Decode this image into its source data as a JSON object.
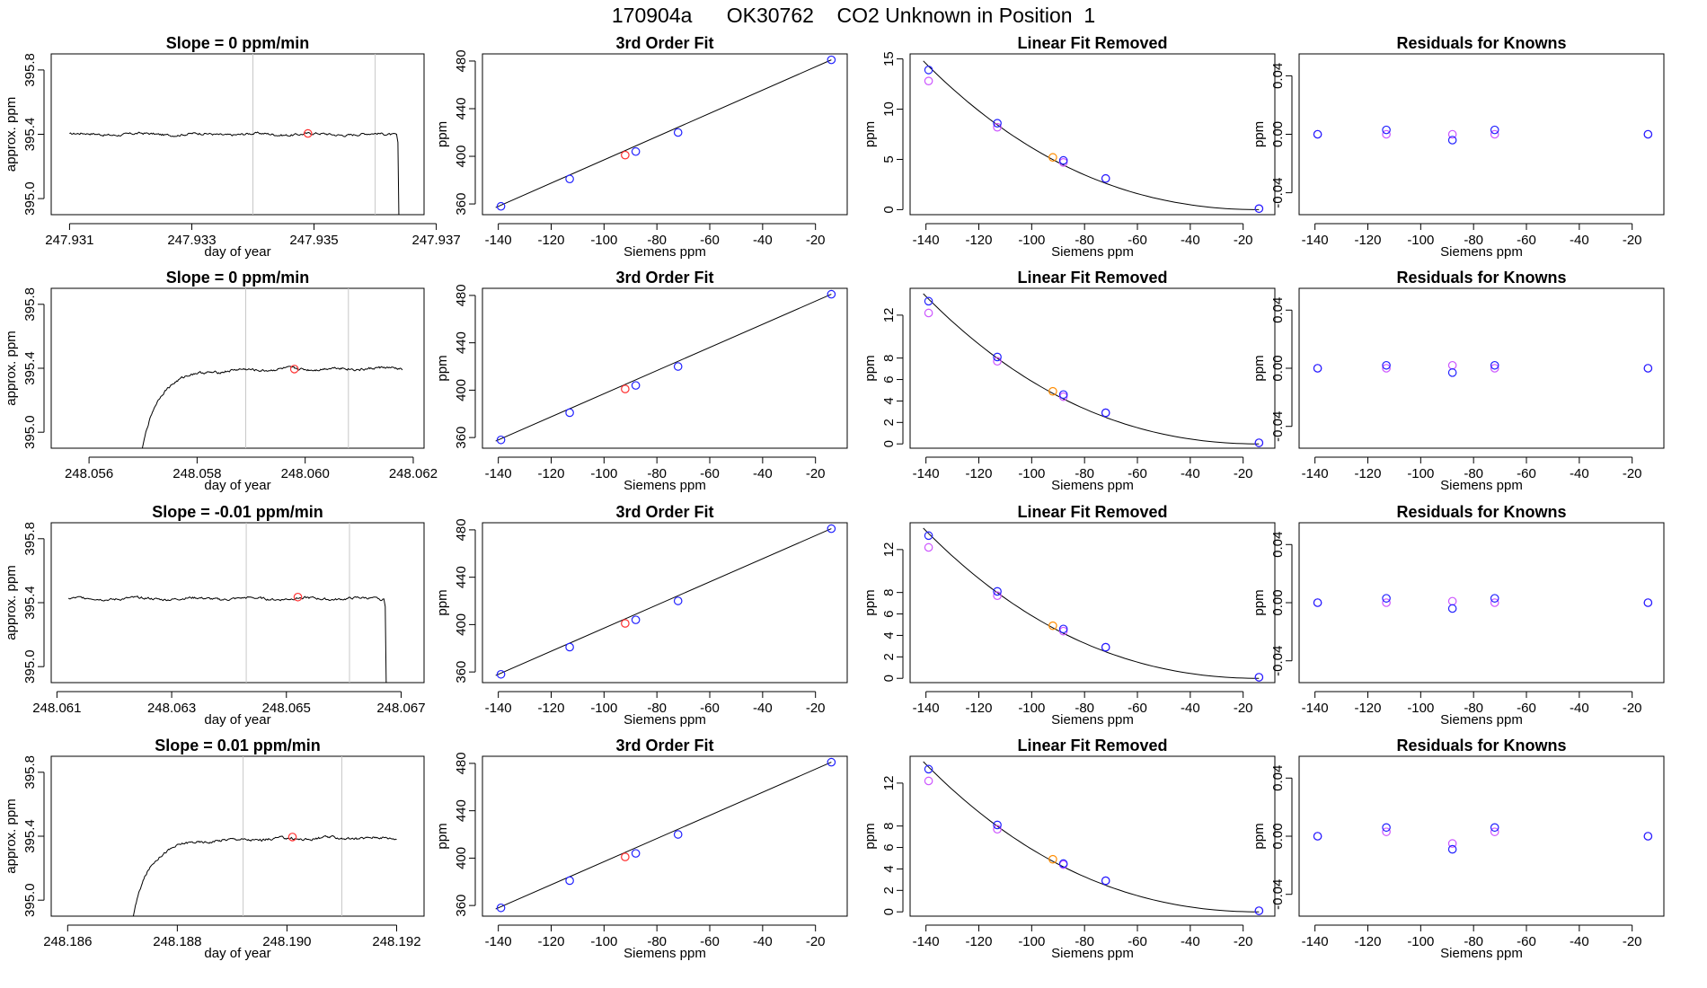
{
  "title": "170904a      OK30762    CO2 Unknown in Position  1",
  "colors": {
    "line": "#000000",
    "grid": "#c8c8c8",
    "known": "#2020ff",
    "unknown": "#ff3030",
    "orange": "#ff8c00",
    "magenta": "#cc55ff"
  },
  "chart_data": [
    {
      "type": "line",
      "panel": "timeseries",
      "row": 0,
      "title": "Slope =  0  ppm/min",
      "xlabel": "day of year",
      "ylabel": "approx. ppm",
      "xlim": [
        247.9307,
        247.9368
      ],
      "ylim": [
        394.9,
        395.9
      ],
      "xticks": [
        247.931,
        247.933,
        247.935,
        247.937
      ],
      "xtick_labels": [
        "247.931",
        "247.933",
        "247.935",
        "247.937"
      ],
      "yticks": [
        395.0,
        395.4,
        395.8
      ],
      "ytick_labels": [
        "395.0",
        "395.4",
        "395.8"
      ],
      "vlines": [
        247.934,
        247.936
      ],
      "highlight": {
        "x": 247.9349,
        "y": 395.405
      },
      "series_shape": "flat",
      "y_level": 395.4,
      "x_start": 247.931,
      "x_end": 247.93635
    },
    {
      "type": "scatter",
      "panel": "fit",
      "row": 0,
      "title": "3rd Order Fit",
      "xlabel": "Siemens ppm",
      "ylabel": "ppm",
      "xlim": [
        -146,
        -8
      ],
      "ylim": [
        351,
        486
      ],
      "xticks": [
        -140,
        -120,
        -100,
        -80,
        -60,
        -40,
        -20
      ],
      "xtick_labels": [
        "-140",
        "-120",
        "-100",
        "-80",
        "-60",
        "-40",
        "-20"
      ],
      "yticks": [
        360,
        400,
        440,
        480
      ],
      "ytick_labels": [
        "360",
        "400",
        "440",
        "480"
      ],
      "line": {
        "x": [
          -141,
          -14
        ],
        "y": [
          357,
          481
        ]
      },
      "known_points": {
        "x": [
          -139,
          -113,
          -88,
          -72,
          -14
        ],
        "y": [
          358,
          381,
          404,
          420,
          481
        ]
      },
      "unknown_points": {
        "x": [
          -92
        ],
        "y": [
          401
        ]
      }
    },
    {
      "type": "scatter",
      "panel": "linear_removed",
      "row": 0,
      "title": "Linear Fit Removed",
      "xlabel": "Siemens ppm",
      "ylabel": "ppm",
      "xlim": [
        -146,
        -8
      ],
      "ylim": [
        -0.5,
        15.5
      ],
      "xticks": [
        -140,
        -120,
        -100,
        -80,
        -60,
        -40,
        -20
      ],
      "xtick_labels": [
        "-140",
        "-120",
        "-100",
        "-80",
        "-60",
        "-40",
        "-20"
      ],
      "yticks": [
        0,
        5,
        10,
        15
      ],
      "ytick_labels": [
        "0",
        "5",
        "10",
        "15"
      ],
      "curve": {
        "x0": -141,
        "x1": -14,
        "y0": 14.8
      },
      "blue_points": {
        "x": [
          -139,
          -113,
          -88,
          -72,
          -14
        ],
        "y": [
          13.9,
          8.6,
          4.9,
          3.1,
          0.1
        ]
      },
      "magenta_points": {
        "x": [
          -139,
          -113,
          -88,
          -72,
          -14
        ],
        "y": [
          12.8,
          8.2,
          4.7,
          3.1,
          0.1
        ]
      },
      "orange_points": {
        "x": [
          -92
        ],
        "y": [
          5.2
        ]
      }
    },
    {
      "type": "scatter",
      "panel": "residuals",
      "row": 0,
      "title": "Residuals for Knowns",
      "xlabel": "Siemens ppm",
      "ylabel": "ppm",
      "xlim": [
        -146,
        -8
      ],
      "ylim": [
        -0.055,
        0.055
      ],
      "xticks": [
        -140,
        -120,
        -100,
        -80,
        -60,
        -40,
        -20
      ],
      "xtick_labels": [
        "-140",
        "-120",
        "-100",
        "-80",
        "-60",
        "-40",
        "-20"
      ],
      "yticks": [
        -0.04,
        0.0,
        0.04
      ],
      "ytick_labels": [
        "-0.04",
        "0.00",
        "0.04"
      ],
      "blue_points": {
        "x": [
          -139,
          -113,
          -88,
          -72,
          -14
        ],
        "y": [
          0.0,
          0.003,
          -0.004,
          0.003,
          0.0
        ]
      },
      "magenta_points": {
        "x": [
          -139,
          -113,
          -88,
          -72,
          -14
        ],
        "y": [
          0.0,
          0.0,
          0.0,
          0.0,
          0.0
        ]
      }
    },
    {
      "type": "line",
      "panel": "timeseries",
      "row": 1,
      "title": "Slope =  0  ppm/min",
      "xlabel": "day of year",
      "ylabel": "approx. ppm",
      "xlim": [
        248.0553,
        248.0622
      ],
      "ylim": [
        394.9,
        395.9
      ],
      "xticks": [
        248.056,
        248.058,
        248.06,
        248.062
      ],
      "xtick_labels": [
        "248.056",
        "248.058",
        "248.060",
        "248.062"
      ],
      "yticks": [
        395.0,
        395.4,
        395.8
      ],
      "ytick_labels": [
        "395.0",
        "395.4",
        "395.8"
      ],
      "vlines": [
        248.0589,
        248.0608
      ],
      "highlight": {
        "x": 248.0598,
        "y": 395.395
      },
      "series_shape": "rise",
      "y_level": 395.4,
      "x_start": 248.05685,
      "x_end": 248.0618
    },
    {
      "type": "scatter",
      "panel": "fit",
      "row": 1,
      "title": "3rd Order Fit",
      "xlabel": "Siemens ppm",
      "ylabel": "ppm",
      "xlim": [
        -146,
        -8
      ],
      "ylim": [
        351,
        486
      ],
      "xticks": [
        -140,
        -120,
        -100,
        -80,
        -60,
        -40,
        -20
      ],
      "xtick_labels": [
        "-140",
        "-120",
        "-100",
        "-80",
        "-60",
        "-40",
        "-20"
      ],
      "yticks": [
        360,
        400,
        440,
        480
      ],
      "ytick_labels": [
        "360",
        "400",
        "440",
        "480"
      ],
      "line": {
        "x": [
          -141,
          -14
        ],
        "y": [
          357,
          481
        ]
      },
      "known_points": {
        "x": [
          -139,
          -113,
          -88,
          -72,
          -14
        ],
        "y": [
          358,
          381,
          404,
          420,
          481
        ]
      },
      "unknown_points": {
        "x": [
          -92
        ],
        "y": [
          401
        ]
      }
    },
    {
      "type": "scatter",
      "panel": "linear_removed",
      "row": 1,
      "title": "Linear Fit Removed",
      "xlabel": "Siemens ppm",
      "ylabel": "ppm",
      "xlim": [
        -146,
        -8
      ],
      "ylim": [
        -0.4,
        14.5
      ],
      "xticks": [
        -140,
        -120,
        -100,
        -80,
        -60,
        -40,
        -20
      ],
      "xtick_labels": [
        "-140",
        "-120",
        "-100",
        "-80",
        "-60",
        "-40",
        "-20"
      ],
      "yticks": [
        0,
        2,
        4,
        6,
        8,
        12
      ],
      "ytick_labels": [
        "0",
        "2",
        "4",
        "6",
        "8",
        "12"
      ],
      "curve": {
        "x0": -141,
        "x1": -14,
        "y0": 14.0
      },
      "blue_points": {
        "x": [
          -139,
          -113,
          -88,
          -72,
          -14
        ],
        "y": [
          13.3,
          8.1,
          4.6,
          2.9,
          0.1
        ]
      },
      "magenta_points": {
        "x": [
          -139,
          -113,
          -88,
          -72,
          -14
        ],
        "y": [
          12.2,
          7.7,
          4.4,
          2.9,
          0.1
        ]
      },
      "orange_points": {
        "x": [
          -92
        ],
        "y": [
          4.9
        ]
      }
    },
    {
      "type": "scatter",
      "panel": "residuals",
      "row": 1,
      "title": "Residuals for Knowns",
      "xlabel": "Siemens ppm",
      "ylabel": "ppm",
      "xlim": [
        -146,
        -8
      ],
      "ylim": [
        -0.055,
        0.055
      ],
      "xticks": [
        -140,
        -120,
        -100,
        -80,
        -60,
        -40,
        -20
      ],
      "xtick_labels": [
        "-140",
        "-120",
        "-100",
        "-80",
        "-60",
        "-40",
        "-20"
      ],
      "yticks": [
        -0.04,
        0.0,
        0.04
      ],
      "ytick_labels": [
        "-0.04",
        "0.00",
        "0.04"
      ],
      "blue_points": {
        "x": [
          -139,
          -113,
          -88,
          -72,
          -14
        ],
        "y": [
          0.0,
          0.002,
          -0.003,
          0.002,
          0.0
        ]
      },
      "magenta_points": {
        "x": [
          -139,
          -113,
          -88,
          -72,
          -14
        ],
        "y": [
          0.0,
          0.0,
          0.002,
          0.0,
          0.0
        ]
      }
    },
    {
      "type": "line",
      "panel": "timeseries",
      "row": 2,
      "title": "Slope =  -0.01  ppm/min",
      "xlabel": "day of year",
      "ylabel": "approx. ppm",
      "xlim": [
        248.0609,
        248.0674
      ],
      "ylim": [
        394.9,
        395.9
      ],
      "xticks": [
        248.061,
        248.063,
        248.065,
        248.067
      ],
      "xtick_labels": [
        "248.061",
        "248.063",
        "248.065",
        "248.067"
      ],
      "yticks": [
        395.0,
        395.4,
        395.8
      ],
      "ytick_labels": [
        "395.0",
        "395.4",
        "395.8"
      ],
      "vlines": [
        248.0643,
        248.0661
      ],
      "highlight": {
        "x": 248.0652,
        "y": 395.435
      },
      "series_shape": "flat",
      "y_level": 395.425,
      "x_start": 248.0612,
      "x_end": 248.0667
    },
    {
      "type": "scatter",
      "panel": "fit",
      "row": 2,
      "title": "3rd Order Fit",
      "xlabel": "Siemens ppm",
      "ylabel": "ppm",
      "xlim": [
        -146,
        -8
      ],
      "ylim": [
        351,
        486
      ],
      "xticks": [
        -140,
        -120,
        -100,
        -80,
        -60,
        -40,
        -20
      ],
      "xtick_labels": [
        "-140",
        "-120",
        "-100",
        "-80",
        "-60",
        "-40",
        "-20"
      ],
      "yticks": [
        360,
        400,
        440,
        480
      ],
      "ytick_labels": [
        "360",
        "400",
        "440",
        "480"
      ],
      "line": {
        "x": [
          -141,
          -14
        ],
        "y": [
          357,
          481
        ]
      },
      "known_points": {
        "x": [
          -139,
          -113,
          -88,
          -72,
          -14
        ],
        "y": [
          358,
          381,
          404,
          420,
          481
        ]
      },
      "unknown_points": {
        "x": [
          -92
        ],
        "y": [
          401
        ]
      }
    },
    {
      "type": "scatter",
      "panel": "linear_removed",
      "row": 2,
      "title": "Linear Fit Removed",
      "xlabel": "Siemens ppm",
      "ylabel": "ppm",
      "xlim": [
        -146,
        -8
      ],
      "ylim": [
        -0.4,
        14.5
      ],
      "xticks": [
        -140,
        -120,
        -100,
        -80,
        -60,
        -40,
        -20
      ],
      "xtick_labels": [
        "-140",
        "-120",
        "-100",
        "-80",
        "-60",
        "-40",
        "-20"
      ],
      "yticks": [
        0,
        2,
        4,
        6,
        8,
        12
      ],
      "ytick_labels": [
        "0",
        "2",
        "4",
        "6",
        "8",
        "12"
      ],
      "curve": {
        "x0": -141,
        "x1": -14,
        "y0": 14.0
      },
      "blue_points": {
        "x": [
          -139,
          -113,
          -88,
          -72,
          -14
        ],
        "y": [
          13.3,
          8.1,
          4.6,
          2.9,
          0.1
        ]
      },
      "magenta_points": {
        "x": [
          -139,
          -113,
          -88,
          -72,
          -14
        ],
        "y": [
          12.2,
          7.7,
          4.4,
          2.9,
          0.1
        ]
      },
      "orange_points": {
        "x": [
          -92
        ],
        "y": [
          4.9
        ]
      }
    },
    {
      "type": "scatter",
      "panel": "residuals",
      "row": 2,
      "title": "Residuals for Knowns",
      "xlabel": "Siemens ppm",
      "ylabel": "ppm",
      "xlim": [
        -146,
        -8
      ],
      "ylim": [
        -0.055,
        0.055
      ],
      "xticks": [
        -140,
        -120,
        -100,
        -80,
        -60,
        -40,
        -20
      ],
      "xtick_labels": [
        "-140",
        "-120",
        "-100",
        "-80",
        "-60",
        "-40",
        "-20"
      ],
      "yticks": [
        -0.04,
        0.0,
        0.04
      ],
      "ytick_labels": [
        "-0.04",
        "0.00",
        "0.04"
      ],
      "blue_points": {
        "x": [
          -139,
          -113,
          -88,
          -72,
          -14
        ],
        "y": [
          0.0,
          0.003,
          -0.004,
          0.003,
          0.0
        ]
      },
      "magenta_points": {
        "x": [
          -139,
          -113,
          -88,
          -72,
          -14
        ],
        "y": [
          0.0,
          0.0,
          0.001,
          0.0,
          0.0
        ]
      }
    },
    {
      "type": "line",
      "panel": "timeseries",
      "row": 3,
      "title": "Slope =  0.01  ppm/min",
      "xlabel": "day of year",
      "ylabel": "approx. ppm",
      "xlim": [
        248.1857,
        248.1925
      ],
      "ylim": [
        394.9,
        395.9
      ],
      "xticks": [
        248.186,
        248.188,
        248.19,
        248.192
      ],
      "xtick_labels": [
        "248.186",
        "248.188",
        "248.190",
        "248.192"
      ],
      "yticks": [
        395.0,
        395.4,
        395.8
      ],
      "ytick_labels": [
        "395.0",
        "395.4",
        "395.8"
      ],
      "vlines": [
        248.1892,
        248.191
      ],
      "highlight": {
        "x": 248.1901,
        "y": 395.395
      },
      "series_shape": "rise",
      "y_level": 395.39,
      "x_start": 248.18705,
      "x_end": 248.192
    },
    {
      "type": "scatter",
      "panel": "fit",
      "row": 3,
      "title": "3rd Order Fit",
      "xlabel": "Siemens ppm",
      "ylabel": "ppm",
      "xlim": [
        -146,
        -8
      ],
      "ylim": [
        351,
        486
      ],
      "xticks": [
        -140,
        -120,
        -100,
        -80,
        -60,
        -40,
        -20
      ],
      "xtick_labels": [
        "-140",
        "-120",
        "-100",
        "-80",
        "-60",
        "-40",
        "-20"
      ],
      "yticks": [
        360,
        400,
        440,
        480
      ],
      "ytick_labels": [
        "360",
        "400",
        "440",
        "480"
      ],
      "line": {
        "x": [
          -141,
          -14
        ],
        "y": [
          357,
          481
        ]
      },
      "known_points": {
        "x": [
          -139,
          -113,
          -88,
          -72,
          -14
        ],
        "y": [
          358,
          381,
          404,
          420,
          481
        ]
      },
      "unknown_points": {
        "x": [
          -92
        ],
        "y": [
          401
        ]
      }
    },
    {
      "type": "scatter",
      "panel": "linear_removed",
      "row": 3,
      "title": "Linear Fit Removed",
      "xlabel": "Siemens ppm",
      "ylabel": "ppm",
      "xlim": [
        -146,
        -8
      ],
      "ylim": [
        -0.4,
        14.5
      ],
      "xticks": [
        -140,
        -120,
        -100,
        -80,
        -60,
        -40,
        -20
      ],
      "xtick_labels": [
        "-140",
        "-120",
        "-100",
        "-80",
        "-60",
        "-40",
        "-20"
      ],
      "yticks": [
        0,
        2,
        4,
        6,
        8,
        12
      ],
      "ytick_labels": [
        "0",
        "2",
        "4",
        "6",
        "8",
        "12"
      ],
      "curve": {
        "x0": -141,
        "x1": -14,
        "y0": 14.0
      },
      "blue_points": {
        "x": [
          -139,
          -113,
          -88,
          -72,
          -14
        ],
        "y": [
          13.3,
          8.1,
          4.5,
          2.9,
          0.1
        ]
      },
      "magenta_points": {
        "x": [
          -139,
          -113,
          -88,
          -72,
          -14
        ],
        "y": [
          12.2,
          7.7,
          4.4,
          2.9,
          0.1
        ]
      },
      "orange_points": {
        "x": [
          -92
        ],
        "y": [
          4.9
        ]
      }
    },
    {
      "type": "scatter",
      "panel": "residuals",
      "row": 3,
      "title": "Residuals for Knowns",
      "xlabel": "Siemens ppm",
      "ylabel": "ppm",
      "xlim": [
        -146,
        -8
      ],
      "ylim": [
        -0.055,
        0.055
      ],
      "xticks": [
        -140,
        -120,
        -100,
        -80,
        -60,
        -40,
        -20
      ],
      "xtick_labels": [
        "-140",
        "-120",
        "-100",
        "-80",
        "-60",
        "-40",
        "-20"
      ],
      "yticks": [
        -0.04,
        0.0,
        0.04
      ],
      "ytick_labels": [
        "-0.04",
        "0.00",
        "0.04"
      ],
      "blue_points": {
        "x": [
          -139,
          -113,
          -88,
          -72,
          -14
        ],
        "y": [
          0.0,
          0.006,
          -0.009,
          0.006,
          0.0
        ]
      },
      "magenta_points": {
        "x": [
          -139,
          -113,
          -88,
          -72,
          -14
        ],
        "y": [
          0.0,
          0.003,
          -0.005,
          0.003,
          0.0
        ]
      }
    }
  ]
}
